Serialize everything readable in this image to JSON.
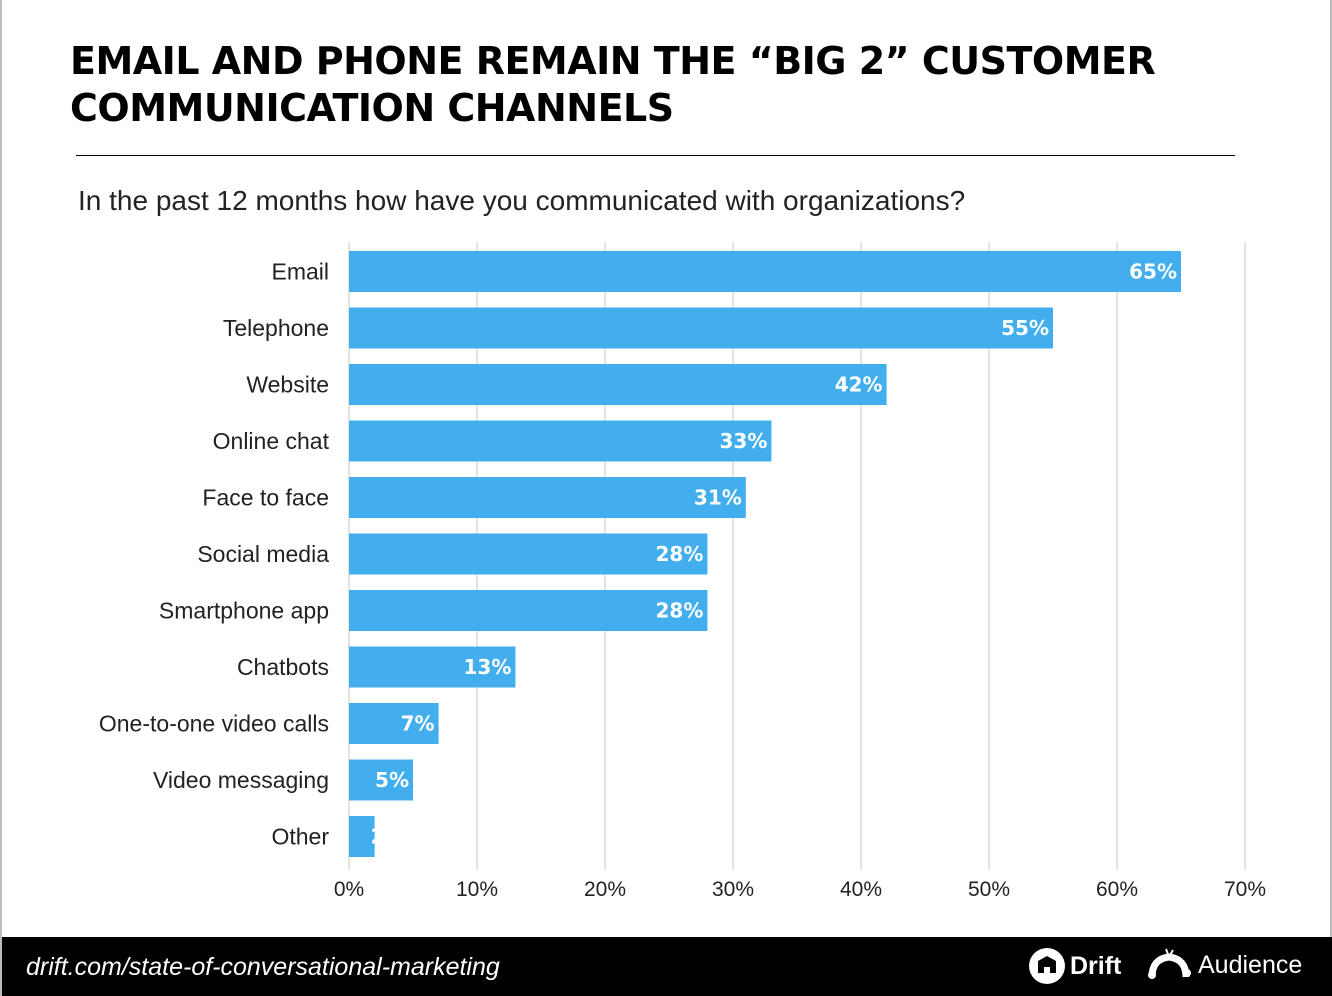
{
  "header": {
    "title": "EMAIL AND PHONE REMAIN THE “BIG 2” CUSTOMER COMMUNICATION CHANNELS",
    "subtitle": "In the past 12 months how have you communicated with organizations?"
  },
  "chart_data": {
    "type": "bar",
    "orientation": "horizontal",
    "categories": [
      "Email",
      "Telephone",
      "Website",
      "Online chat",
      "Face to face",
      "Social media",
      "Smartphone app",
      "Chatbots",
      "One-to-one video calls",
      "Video messaging",
      "Other"
    ],
    "values": [
      65,
      55,
      42,
      33,
      31,
      28,
      28,
      13,
      7,
      5,
      2
    ],
    "data_labels": [
      "65%",
      "55%",
      "42%",
      "33%",
      "31%",
      "28%",
      "28%",
      "13%",
      "7%",
      "5%",
      "2%"
    ],
    "xlim": [
      0,
      70
    ],
    "x_ticks": [
      "0%",
      "10%",
      "20%",
      "30%",
      "40%",
      "50%",
      "60%",
      "70%"
    ],
    "grid": "vertical",
    "bar_color": "#42AEEE",
    "title": "",
    "xlabel": "",
    "ylabel": ""
  },
  "footer": {
    "url": "drift.com/state-of-conversational-marketing",
    "logo_drift": "Drift",
    "logo_audience": "Audience"
  }
}
